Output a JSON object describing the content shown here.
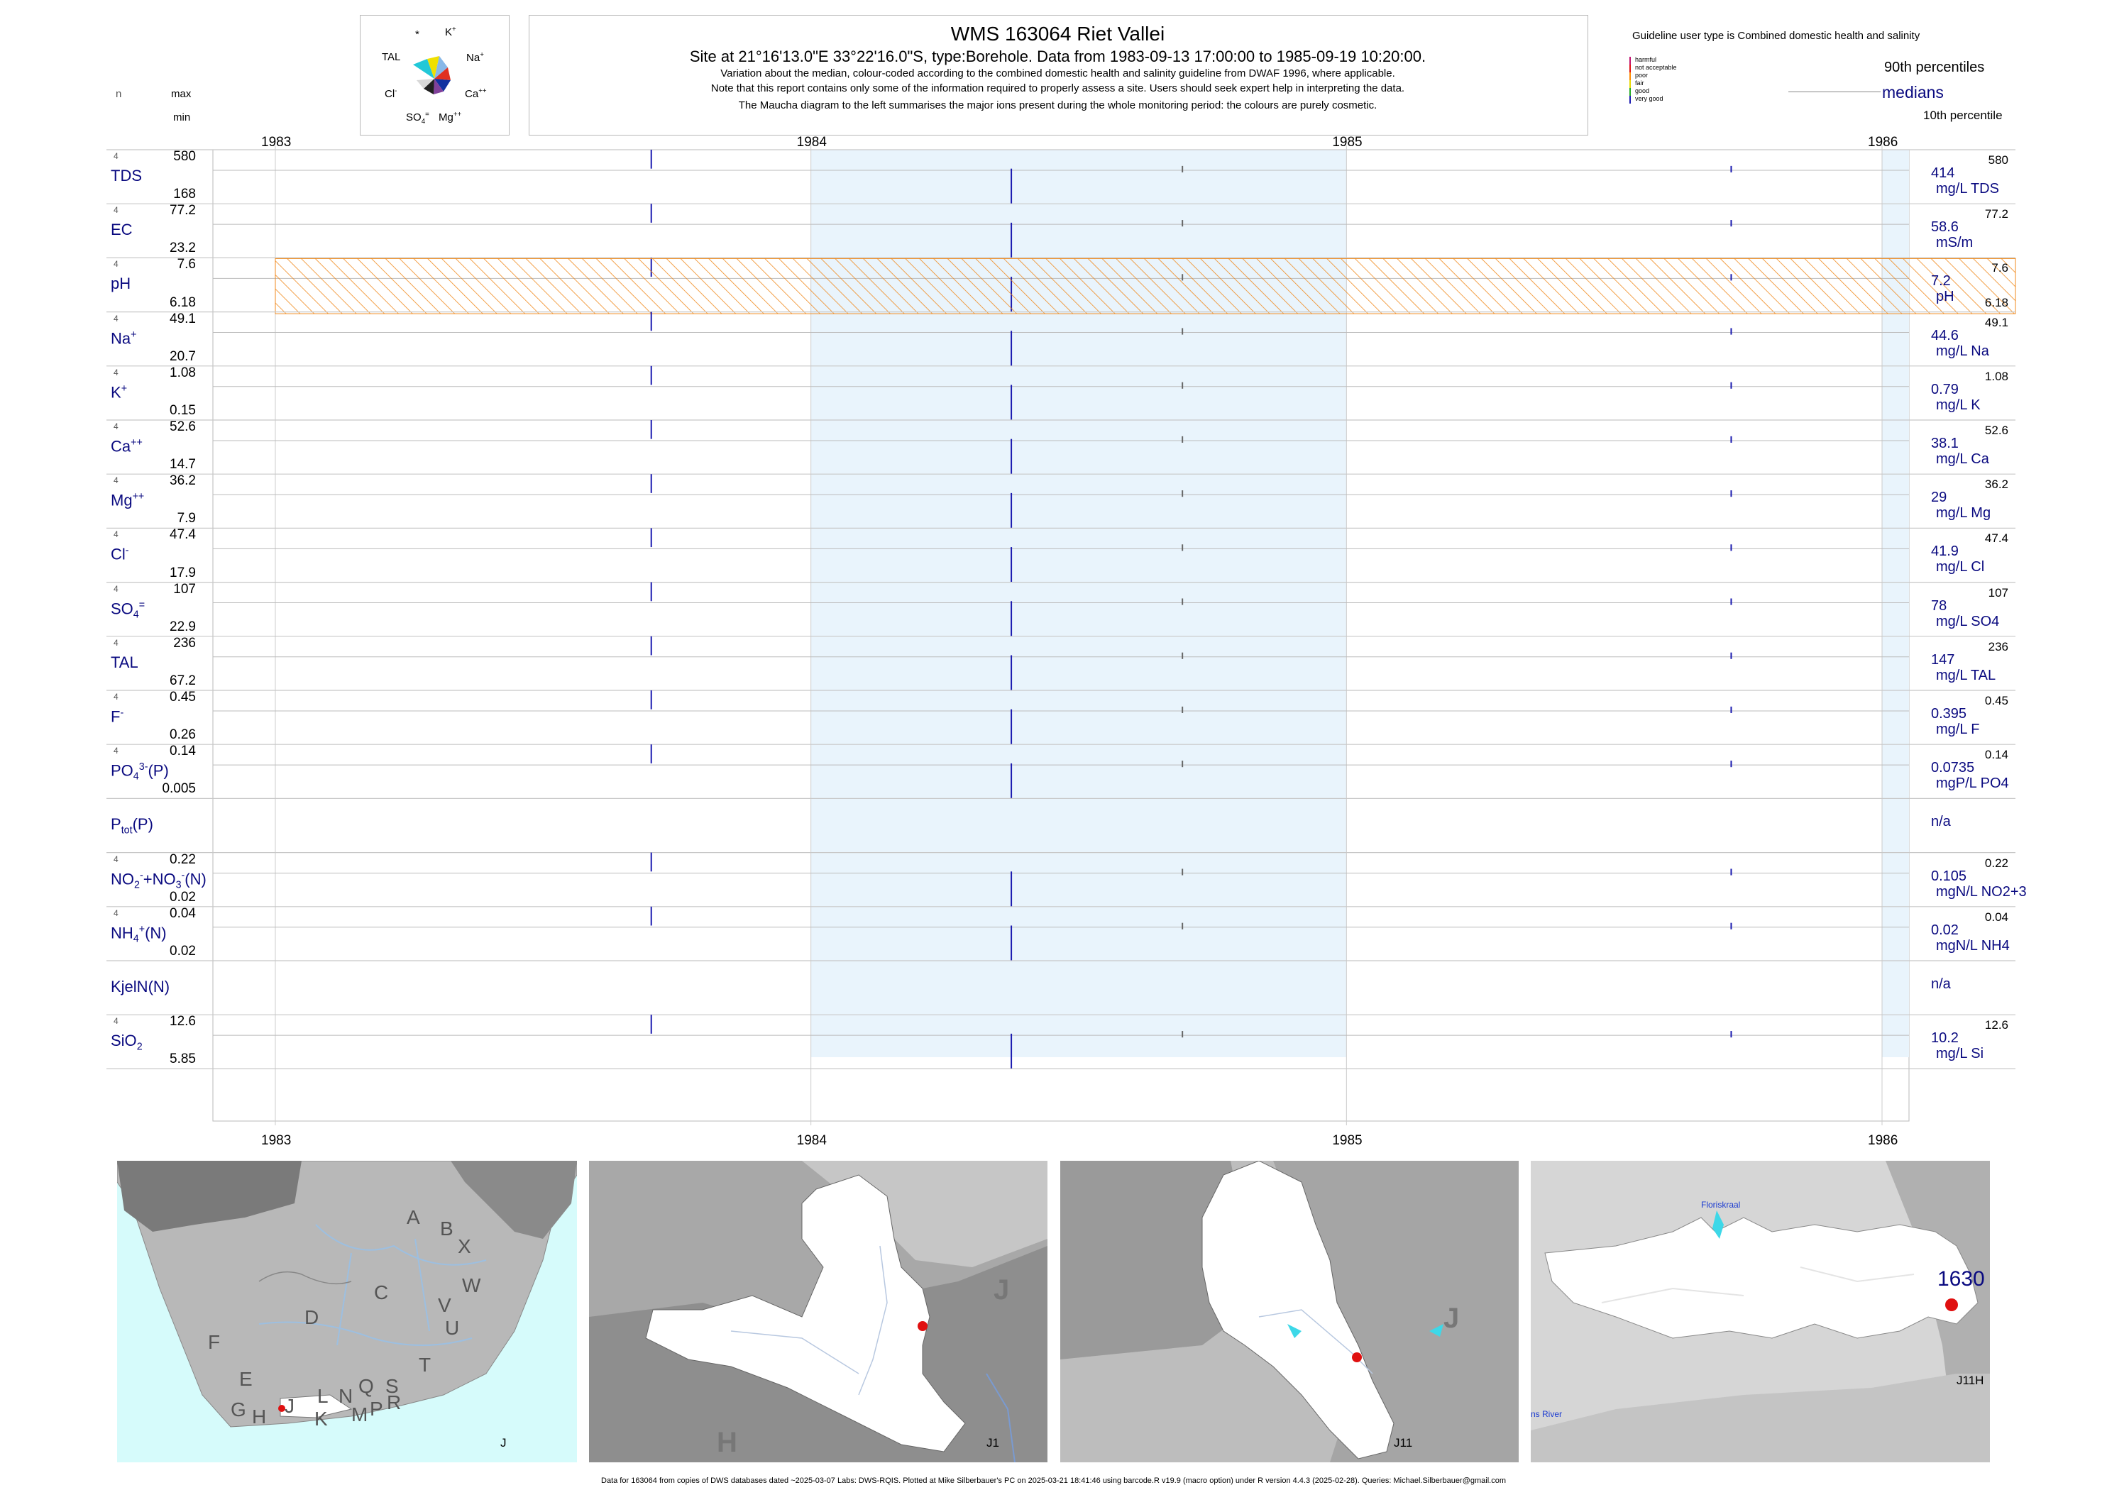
{
  "header": {
    "title": "WMS 163064  Riet Vallei",
    "subtitle": "Site at 21°16'13.0\"E 33°22'16.0\"S, type:Borehole.  Data from 1983-09-13 17:00:00 to 1985-09-19 10:20:00.",
    "note1": "Variation about the median,  colour-coded according to the combined domestic health and salinity guideline from DWAF 1996, where applicable.",
    "note2": "Note that this report contains only some of the information required to properly assess a site. Users should seek expert help in interpreting the data.",
    "note3": "The Maucha diagram to the left summarises the major ions present during the whole monitoring period: the colours are purely cosmetic."
  },
  "maucha": {
    "labels": [
      "*",
      "K+",
      "TAL",
      "Na+",
      "Cl-",
      "Ca++",
      "SO4=",
      "Mg++"
    ]
  },
  "col_headers": {
    "n": "n",
    "max": "max",
    "min": "min"
  },
  "legend": {
    "guideline": "Guideline user type is Combined domestic health and salinity",
    "items": [
      {
        "label": "harmful",
        "color": "#c0106e"
      },
      {
        "label": "not acceptable",
        "color": "#e01010"
      },
      {
        "label": "poor",
        "color": "#ff8c00"
      },
      {
        "label": "fair",
        "color": "#e8d800"
      },
      {
        "label": "good",
        "color": "#22aa22"
      },
      {
        "label": "very good",
        "color": "#1a1ab0"
      }
    ],
    "p90": "90th percentiles",
    "median": "medians",
    "p10": "10th percentile"
  },
  "colors": {
    "median_bar": "#1a1ab0",
    "minor_bar": "#666666",
    "shade": "#e9f4fc",
    "hatch": "#f08a1e",
    "label": "#0a0a80"
  },
  "chart_data": {
    "type": "timeseries-strip",
    "x_ticks": [
      "1983",
      "1984",
      "1985",
      "1986"
    ],
    "shaded_years": [
      "1984",
      "1986"
    ],
    "sample_dates": [
      "1983-09-13",
      "1984-05-15",
      "1984-09-10",
      "1985-09-19"
    ],
    "params": [
      {
        "name": "TDS",
        "n": "4",
        "max": "580",
        "min": "168",
        "median": "414",
        "unit": "mg/L TDS",
        "rmax": "580"
      },
      {
        "name": "EC",
        "n": "4",
        "max": "77.2",
        "min": "23.2",
        "median": "58.6",
        "unit": "mS/m",
        "rmax": "77.2"
      },
      {
        "name": "pH",
        "n": "4",
        "max": "7.6",
        "min": "6.18",
        "median": "7.2",
        "unit": "pH",
        "rmax": "7.6",
        "rmin": "6.18"
      },
      {
        "name": "Na",
        "sup": "+",
        "n": "4",
        "max": "49.1",
        "min": "20.7",
        "median": "44.6",
        "unit": "mg/L Na",
        "rmax": "49.1"
      },
      {
        "name": "K",
        "sup": "+",
        "n": "4",
        "max": "1.08",
        "min": "0.15",
        "median": "0.79",
        "unit": "mg/L K",
        "rmax": "1.08"
      },
      {
        "name": "Ca",
        "sup": "++",
        "n": "4",
        "max": "52.6",
        "min": "14.7",
        "median": "38.1",
        "unit": "mg/L Ca",
        "rmax": "52.6"
      },
      {
        "name": "Mg",
        "sup": "++",
        "n": "4",
        "max": "36.2",
        "min": "7.9",
        "median": "29",
        "unit": "mg/L Mg",
        "rmax": "36.2"
      },
      {
        "name": "Cl",
        "sup": "-",
        "n": "4",
        "max": "47.4",
        "min": "17.9",
        "median": "41.9",
        "unit": "mg/L Cl",
        "rmax": "47.4"
      },
      {
        "name": "SO",
        "sub": "4",
        "sup": "=",
        "n": "4",
        "max": "107",
        "min": "22.9",
        "median": "78",
        "unit": "mg/L SO4",
        "rmax": "107"
      },
      {
        "name": "TAL",
        "n": "4",
        "max": "236",
        "min": "67.2",
        "median": "147",
        "unit": "mg/L TAL",
        "rmax": "236"
      },
      {
        "name": "F",
        "sup": "-",
        "n": "4",
        "max": "0.45",
        "min": "0.26",
        "median": "0.395",
        "unit": "mg/L F",
        "rmax": "0.45"
      },
      {
        "name": "PO",
        "sub": "4",
        "sup": "3-",
        "suffix": "(P)",
        "n": "4",
        "max": "0.14",
        "min": "0.005",
        "median": "0.0735",
        "unit": "mgP/L PO4",
        "rmax": "0.14"
      },
      {
        "name": "P",
        "sub": "tot",
        "suffix": "(P)",
        "n": "",
        "max": "",
        "min": "",
        "median": "n/a",
        "unit": "",
        "rmax": ""
      },
      {
        "name": "NO2+NO3(N)",
        "n": "4",
        "max": "0.22",
        "min": "0.02",
        "median": "0.105",
        "unit": "mgN/L NO2+3",
        "rmax": "0.22"
      },
      {
        "name": "NH",
        "sub": "4",
        "sup": "+",
        "suffix": "(N)",
        "n": "4",
        "max": "0.04",
        "min": "0.02",
        "median": "0.02",
        "unit": "mgN/L NH4",
        "rmax": "0.04"
      },
      {
        "name": "KjelN(N)",
        "n": "",
        "max": "",
        "min": "",
        "median": "n/a",
        "unit": "",
        "rmax": ""
      },
      {
        "name": "SiO",
        "sub": "2",
        "n": "4",
        "max": "12.6",
        "min": "5.85",
        "median": "10.2",
        "unit": "mg/L Si",
        "rmax": "12.6"
      }
    ]
  },
  "maps": {
    "map1_letters": [
      "A",
      "B",
      "X",
      "W",
      "C",
      "V",
      "U",
      "D",
      "T",
      "F",
      "E",
      "G",
      "H",
      "J",
      "L",
      "N",
      "Q",
      "S",
      "K",
      "M",
      "P",
      "R"
    ],
    "map1_corner": "J",
    "map2_letters": [
      "J",
      "H"
    ],
    "map2_corner": "J1",
    "map3_letters": [
      "J"
    ],
    "map3_corner": "J11",
    "map4_place": "Floriskraal",
    "map4_river": "ns River",
    "map4_site": "1630",
    "map4_corner": "J11H"
  },
  "footer": "Data for 163064 from copies of DWS databases dated ~2025-03-07 Labs: DWS-RQIS. Plotted at Mike Silberbauer's PC on 2025-03-21 18:41:46 using barcode.R v19.9 (macro option) under R version 4.4.3 (2025-02-28). Queries: Michael.Silberbauer@gmail.com"
}
